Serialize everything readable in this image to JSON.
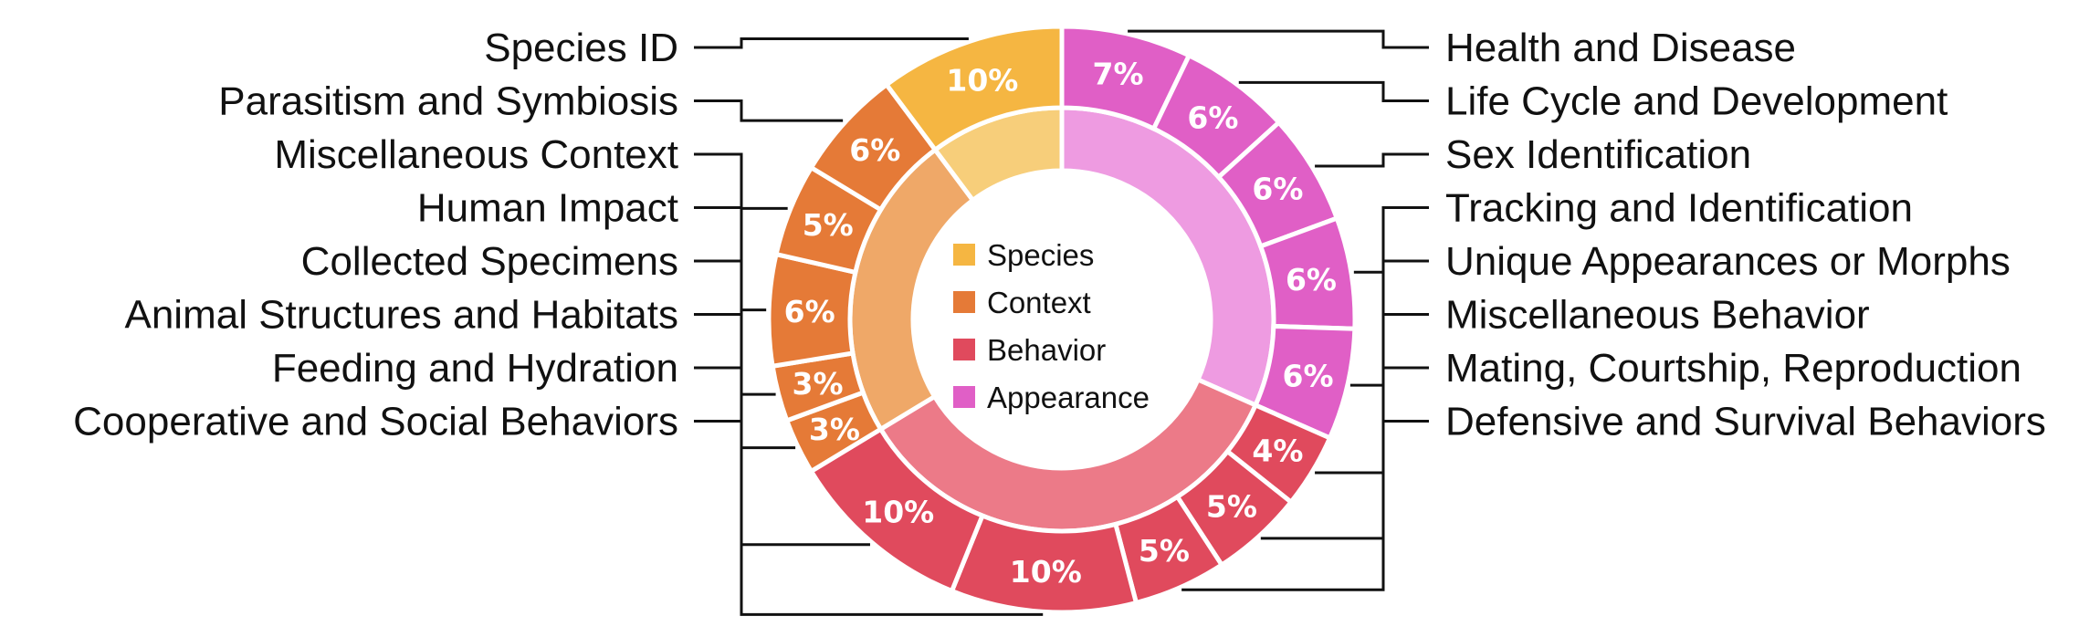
{
  "chart_data": {
    "type": "pie",
    "variant": "nested-donut",
    "groups": [
      {
        "name": "Species",
        "color": "#F5B642",
        "inner_color": "#F7CE7A"
      },
      {
        "name": "Context",
        "color": "#E57A37",
        "inner_color": "#EFA868"
      },
      {
        "name": "Behavior",
        "color": "#E04A5D",
        "inner_color": "#EC7A88"
      },
      {
        "name": "Appearance",
        "color": "#E05FC6",
        "inner_color": "#EE9BE1"
      }
    ],
    "slices": [
      {
        "label": "Health and Disease",
        "group": "Appearance",
        "value": 7,
        "value_label": "7%"
      },
      {
        "label": "Life Cycle and Development",
        "group": "Appearance",
        "value": 6,
        "value_label": "6%"
      },
      {
        "label": "Sex Identification",
        "group": "Appearance",
        "value": 6,
        "value_label": "6%"
      },
      {
        "label": "Tracking and Identification",
        "group": "Appearance",
        "value": 6,
        "value_label": "6%"
      },
      {
        "label": "Unique Appearances or Morphs",
        "group": "Appearance",
        "value": 6,
        "value_label": "6%"
      },
      {
        "label": "Miscellaneous Behavior",
        "group": "Behavior",
        "value": 4,
        "value_label": "4%"
      },
      {
        "label": "Mating, Courtship, Reproduction",
        "group": "Behavior",
        "value": 5,
        "value_label": "5%"
      },
      {
        "label": "Defensive and Survival Behaviors",
        "group": "Behavior",
        "value": 5,
        "value_label": "5%"
      },
      {
        "label": "Cooperative and Social Behaviors",
        "group": "Behavior",
        "value": 10,
        "value_label": "10%"
      },
      {
        "label": "Feeding and Hydration",
        "group": "Behavior",
        "value": 10,
        "value_label": "10%"
      },
      {
        "label": "Animal Structures and Habitats",
        "group": "Context",
        "value": 3,
        "value_label": "3%"
      },
      {
        "label": "Collected Specimens",
        "group": "Context",
        "value": 3,
        "value_label": "3%"
      },
      {
        "label": "Human Impact",
        "group": "Context",
        "value": 6,
        "value_label": "6%"
      },
      {
        "label": "Miscellaneous Context",
        "group": "Context",
        "value": 5,
        "value_label": "5%"
      },
      {
        "label": "Parasitism and Symbiosis",
        "group": "Context",
        "value": 6,
        "value_label": "6%"
      },
      {
        "label": "Species ID",
        "group": "Species",
        "value": 10,
        "value_label": "10%"
      }
    ],
    "legend_placement": "center"
  }
}
